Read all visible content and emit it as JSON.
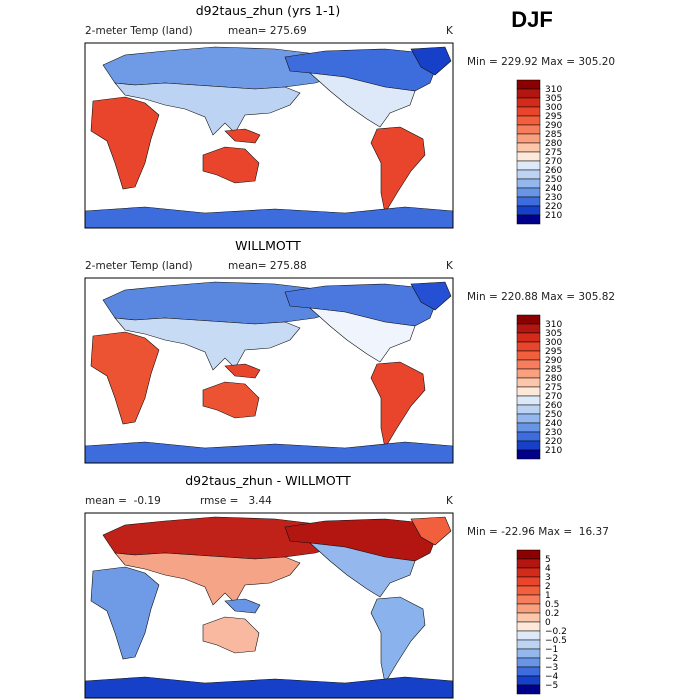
{
  "header": {
    "season": "DJF"
  },
  "panels": [
    {
      "title": "d92taus_zhun (yrs 1-1)",
      "variable": "2-meter Temp (land)",
      "mean": "mean= 275.69",
      "unit": "K",
      "range": "Min = 229.92 Max = 305.20",
      "colorbar": [
        "310",
        "305",
        "300",
        "295",
        "290",
        "285",
        "280",
        "275",
        "270",
        "260",
        "250",
        "240",
        "230",
        "220",
        "210"
      ]
    },
    {
      "title": "WILLMOTT",
      "variable": "2-meter Temp (land)",
      "mean": "mean= 275.88",
      "unit": "K",
      "range": "Min = 220.88 Max = 305.82",
      "colorbar": [
        "310",
        "305",
        "300",
        "295",
        "290",
        "285",
        "280",
        "275",
        "270",
        "260",
        "250",
        "240",
        "230",
        "220",
        "210"
      ]
    },
    {
      "title": "d92taus_zhun - WILLMOTT",
      "mean": "mean =  -0.19",
      "rmse": "rmse =   3.44",
      "unit": "K",
      "range": "Min = -22.96 Max =  16.37",
      "colorbar": [
        "5",
        "4",
        "3",
        "2",
        "1",
        "0.5",
        "0.2",
        "0",
        "−0.2",
        "−0.5",
        "−1",
        "−2",
        "−3",
        "−4",
        "−5"
      ]
    }
  ],
  "colorbar_colors": [
    "#8b0000",
    "#b31510",
    "#d42a1a",
    "#e8452c",
    "#f25f3c",
    "#f77e5c",
    "#f9a07f",
    "#fcc6aa",
    "#fee8da",
    "#dde9f9",
    "#bcd3f3",
    "#94b8ee",
    "#6895e6",
    "#3d6cdc",
    "#1640c8",
    "#00008b"
  ]
}
